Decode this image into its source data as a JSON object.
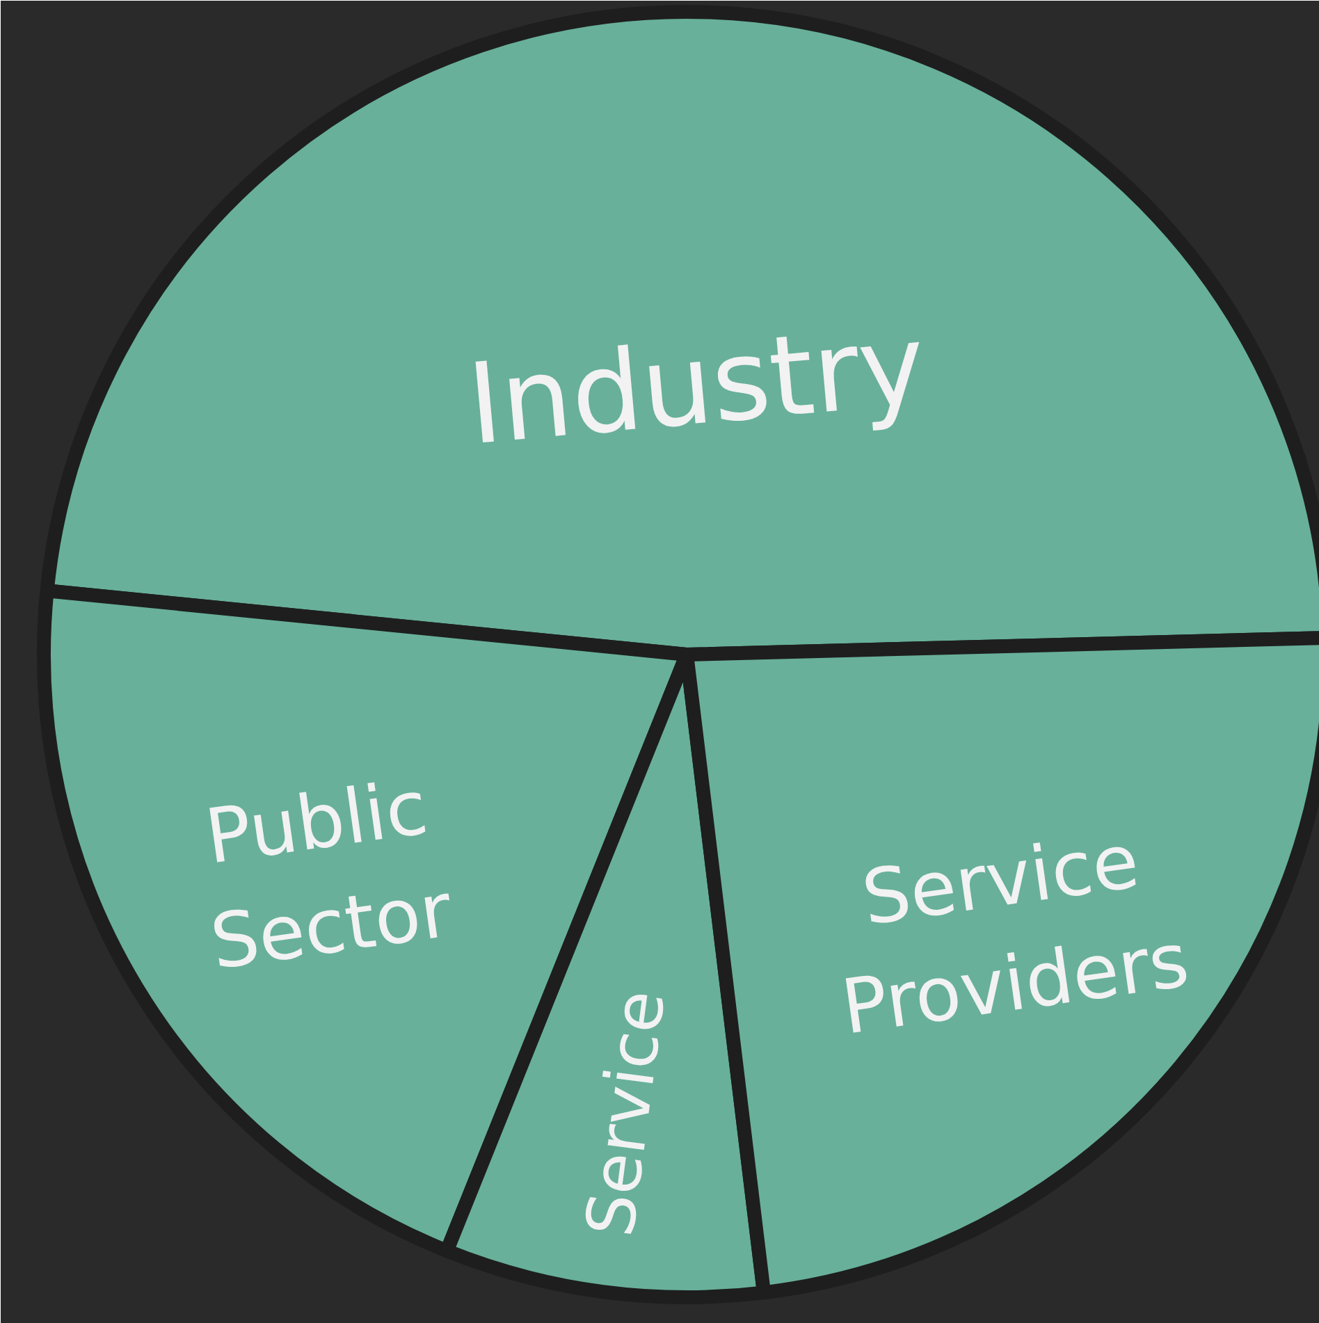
{
  "chart_data": {
    "type": "pie",
    "categories": [
      "Industry",
      "Public Sector",
      "Service",
      "Service Providers"
    ],
    "values": [
      48,
      20.5,
      8,
      23.5
    ],
    "colors": [
      "#68b09a",
      "#68b09a",
      "#68b09a",
      "#68b09a"
    ]
  }
}
